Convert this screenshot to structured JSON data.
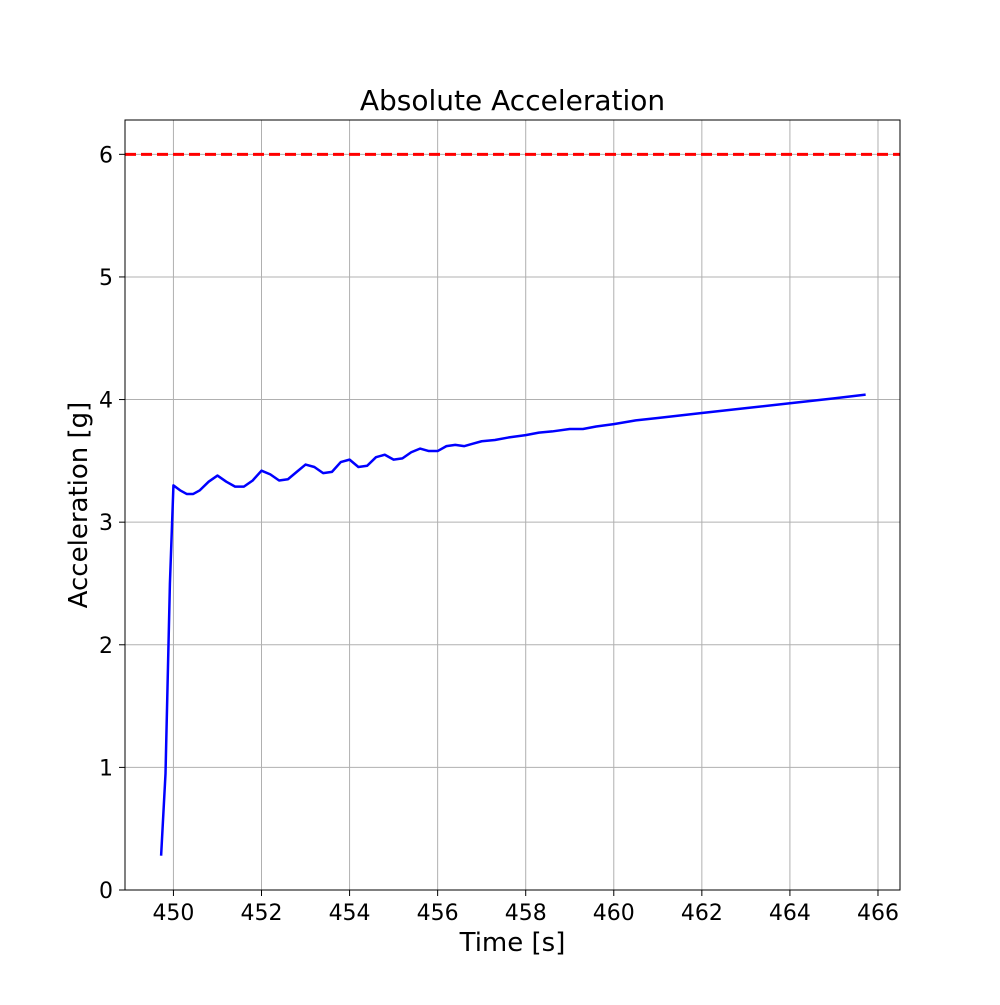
{
  "chart_data": {
    "type": "line",
    "title": "Absolute Acceleration",
    "xlabel": "Time [s]",
    "ylabel": "Acceleration [g]",
    "xlim": [
      448.9,
      466.5
    ],
    "ylim": [
      0,
      6.28
    ],
    "xticks": [
      450,
      452,
      454,
      456,
      458,
      460,
      462,
      464,
      466
    ],
    "xtick_labels": [
      "450",
      "452",
      "454",
      "456",
      "458",
      "460",
      "462",
      "464",
      "466"
    ],
    "yticks": [
      0,
      1,
      2,
      3,
      4,
      5,
      6
    ],
    "ytick_labels": [
      "0",
      "1",
      "2",
      "3",
      "4",
      "5",
      "6"
    ],
    "grid": true,
    "reference_lines": [
      {
        "y": 6.0,
        "color": "#ff0000",
        "style": "dashed"
      }
    ],
    "series": [
      {
        "color": "#0000ff",
        "x": [
          449.72,
          449.82,
          449.92,
          450.0,
          450.15,
          450.3,
          450.45,
          450.6,
          450.8,
          451.0,
          451.2,
          451.4,
          451.6,
          451.8,
          452.0,
          452.2,
          452.4,
          452.6,
          452.8,
          453.0,
          453.2,
          453.4,
          453.6,
          453.8,
          454.0,
          454.2,
          454.4,
          454.6,
          454.8,
          455.0,
          455.2,
          455.4,
          455.6,
          455.8,
          456.0,
          456.2,
          456.4,
          456.6,
          456.8,
          457.0,
          457.3,
          457.6,
          458.0,
          458.3,
          458.6,
          459.0,
          459.3,
          459.6,
          460.0,
          460.5,
          461.0,
          462.0,
          463.0,
          464.0,
          465.0,
          465.72
        ],
        "values": [
          0.28,
          0.95,
          2.5,
          3.3,
          3.26,
          3.23,
          3.23,
          3.26,
          3.33,
          3.38,
          3.33,
          3.29,
          3.29,
          3.34,
          3.42,
          3.39,
          3.34,
          3.35,
          3.41,
          3.47,
          3.45,
          3.4,
          3.41,
          3.49,
          3.51,
          3.45,
          3.46,
          3.53,
          3.55,
          3.51,
          3.52,
          3.57,
          3.6,
          3.58,
          3.58,
          3.62,
          3.63,
          3.62,
          3.64,
          3.66,
          3.67,
          3.69,
          3.71,
          3.73,
          3.74,
          3.76,
          3.76,
          3.78,
          3.8,
          3.83,
          3.85,
          3.89,
          3.93,
          3.97,
          4.01,
          4.04
        ]
      }
    ]
  }
}
